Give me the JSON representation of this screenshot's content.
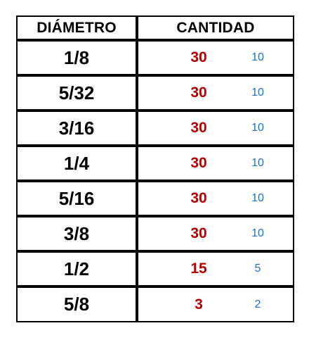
{
  "header": {
    "diametro": "DIÁMETRO",
    "cantidad": "CANTIDAD"
  },
  "colors": {
    "primary_qty": "#b30000",
    "secondary_qty": "#1f6fc5",
    "border": "#000000"
  },
  "rows": [
    {
      "diametro": "1/8",
      "cantidad": "30",
      "extra": "10"
    },
    {
      "diametro": "5/32",
      "cantidad": "30",
      "extra": "10"
    },
    {
      "diametro": "3/16",
      "cantidad": "30",
      "extra": "10"
    },
    {
      "diametro": "1/4",
      "cantidad": "30",
      "extra": "10"
    },
    {
      "diametro": "5/16",
      "cantidad": "30",
      "extra": "10"
    },
    {
      "diametro": "3/8",
      "cantidad": "30",
      "extra": "10"
    },
    {
      "diametro": "1/2",
      "cantidad": "15",
      "extra": "5"
    },
    {
      "diametro": "5/8",
      "cantidad": "3",
      "extra": "2"
    }
  ]
}
